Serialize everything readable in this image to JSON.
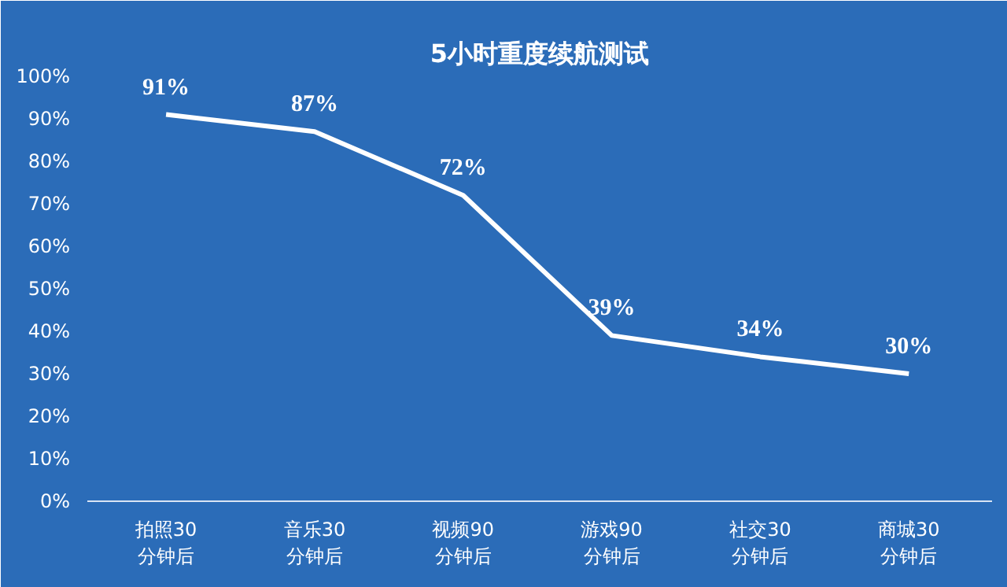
{
  "chart_data": {
    "type": "line",
    "title": "5小时重度续航测试",
    "categories": [
      "拍照30\n分钟后",
      "音乐30\n分钟后",
      "视频90\n分钟后",
      "游戏90\n分钟后",
      "社交30\n分钟后",
      "商城30\n分钟后"
    ],
    "values": [
      91,
      87,
      72,
      39,
      34,
      30
    ],
    "value_labels": [
      "91%",
      "87%",
      "72%",
      "39%",
      "34%",
      "30%"
    ],
    "color": "#ffffff",
    "ylim": [
      0,
      100
    ],
    "yticks": [
      {
        "value": 0,
        "label": "0%"
      },
      {
        "value": 10,
        "label": "10%"
      },
      {
        "value": 20,
        "label": "20%"
      },
      {
        "value": 30,
        "label": "30%"
      },
      {
        "value": 40,
        "label": "40%"
      },
      {
        "value": 50,
        "label": "50%"
      },
      {
        "value": 60,
        "label": "60%"
      },
      {
        "value": 70,
        "label": "70%"
      },
      {
        "value": 80,
        "label": "80%"
      },
      {
        "value": 90,
        "label": "90%"
      },
      {
        "value": 100,
        "label": "100%"
      }
    ],
    "grid": false,
    "marker": "none",
    "line_style": "solid"
  }
}
